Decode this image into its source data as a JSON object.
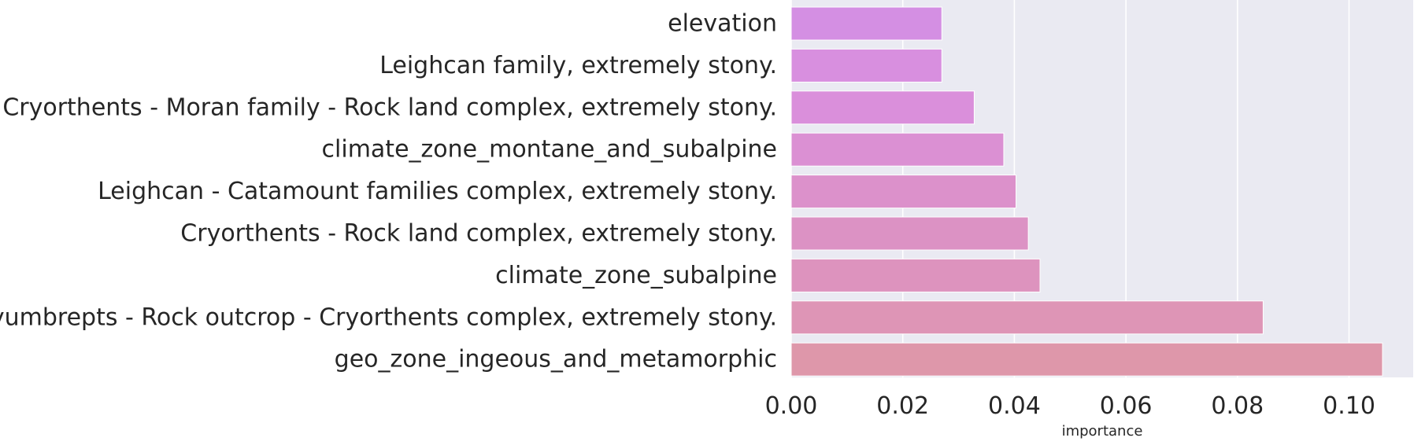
{
  "chart_data": {
    "type": "bar",
    "orientation": "horizontal",
    "categories": [
      "elevation",
      "Leighcan family, extremely stony.",
      "Cryorthents - Moran family - Rock land complex, extremely stony.",
      "climate_zone_montane_and_subalpine",
      "Leighcan - Catamount families complex, extremely stony.",
      "Cryorthents - Rock land complex, extremely stony.",
      "climate_zone_subalpine",
      "Cryumbrepts - Rock outcrop - Cryorthents complex, extremely stony.",
      "geo_zone_ingeous_and_metamorphic"
    ],
    "values": [
      0.027,
      0.027,
      0.0328,
      0.0381,
      0.0403,
      0.0425,
      0.0446,
      0.0846,
      0.106
    ],
    "colors": [
      "#d48fe3",
      "#d88fdf",
      "#da8fdb",
      "#db90d3",
      "#dc91cb",
      "#dc92c4",
      "#dd93be",
      "#de95b6",
      "#de97aa"
    ],
    "xlabel": "importance",
    "ylabel": "",
    "xlim": [
      0,
      0.1115
    ],
    "xticks": [
      0.0,
      0.02,
      0.04,
      0.06,
      0.08,
      0.1
    ],
    "xtick_labels": [
      "0.00",
      "0.02",
      "0.04",
      "0.06",
      "0.08",
      "0.10"
    ],
    "grid": true,
    "background_color": "#eaeaf2",
    "grid_color": "#ffffff",
    "text_color": "#262626"
  }
}
